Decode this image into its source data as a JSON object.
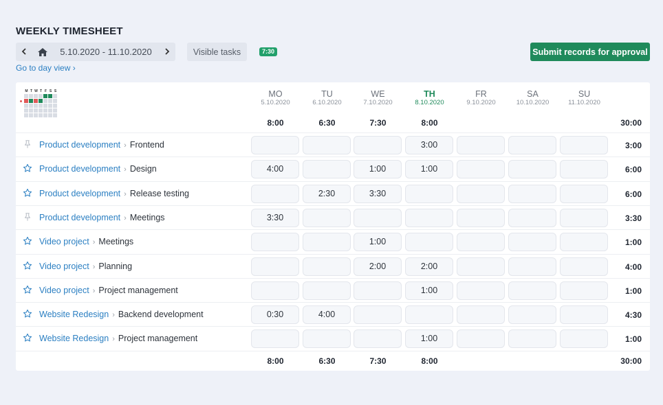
{
  "header": {
    "title": "WEEKLY TIMESHEET",
    "date_range": "5.10.2020 - 11.10.2020",
    "visible_tasks_label": "Visible tasks",
    "total_badge": "7:30",
    "day_view_link": "Go to day view ›",
    "submit_label": "Submit records for approval",
    "prev_icon": "chevron-left-icon",
    "next_icon": "chevron-right-icon",
    "home_icon": "home-icon"
  },
  "mini_calendar": {
    "weekday_letters": [
      "M",
      "T",
      "W",
      "T",
      "F",
      "S",
      "S"
    ]
  },
  "days": [
    {
      "name": "MO",
      "date": "5.10.2020",
      "total": "8:00"
    },
    {
      "name": "TU",
      "date": "6.10.2020",
      "total": "6:30"
    },
    {
      "name": "WE",
      "date": "7.10.2020",
      "total": "7:30"
    },
    {
      "name": "TH",
      "date": "8.10.2020",
      "total": "8:00",
      "today": true
    },
    {
      "name": "FR",
      "date": "9.10.2020",
      "total": ""
    },
    {
      "name": "SA",
      "date": "10.10.2020",
      "total": ""
    },
    {
      "name": "SU",
      "date": "11.10.2020",
      "total": ""
    }
  ],
  "week_total": "30:00",
  "footer": {
    "day_totals": [
      "8:00",
      "6:30",
      "7:30",
      "8:00",
      "",
      "",
      ""
    ],
    "week_total": "30:00"
  },
  "rows": [
    {
      "icon": "pin-icon",
      "project": "Product development",
      "task": "Frontend",
      "hours": [
        "",
        "",
        "",
        "3:00",
        "",
        "",
        ""
      ],
      "total": "3:00"
    },
    {
      "icon": "star-icon",
      "project": "Product development",
      "task": "Design",
      "hours": [
        "4:00",
        "",
        "1:00",
        "1:00",
        "",
        "",
        ""
      ],
      "total": "6:00"
    },
    {
      "icon": "star-icon",
      "project": "Product development",
      "task": "Release testing",
      "hours": [
        "",
        "2:30",
        "3:30",
        "",
        "",
        "",
        ""
      ],
      "total": "6:00"
    },
    {
      "icon": "pin-icon",
      "project": "Product development",
      "task": "Meetings",
      "hours": [
        "3:30",
        "",
        "",
        "",
        "",
        "",
        ""
      ],
      "total": "3:30"
    },
    {
      "icon": "star-icon",
      "project": "Video project",
      "task": "Meetings",
      "hours": [
        "",
        "",
        "1:00",
        "",
        "",
        "",
        ""
      ],
      "total": "1:00"
    },
    {
      "icon": "star-icon",
      "project": "Video project",
      "task": "Planning",
      "hours": [
        "",
        "",
        "2:00",
        "2:00",
        "",
        "",
        ""
      ],
      "total": "4:00"
    },
    {
      "icon": "star-icon",
      "project": "Video project",
      "task": "Project management",
      "hours": [
        "",
        "",
        "",
        "1:00",
        "",
        "",
        ""
      ],
      "total": "1:00"
    },
    {
      "icon": "star-icon",
      "project": "Website Redesign",
      "task": "Backend development",
      "hours": [
        "0:30",
        "4:00",
        "",
        "",
        "",
        "",
        ""
      ],
      "total": "4:30"
    },
    {
      "icon": "star-icon",
      "project": "Website Redesign",
      "task": "Project management",
      "hours": [
        "",
        "",
        "",
        "1:00",
        "",
        "",
        ""
      ],
      "total": "1:00"
    }
  ],
  "colors": {
    "accent_green": "#1f8a5b",
    "link_blue": "#2b7fc2",
    "calendar_red": "#e05a5a"
  }
}
